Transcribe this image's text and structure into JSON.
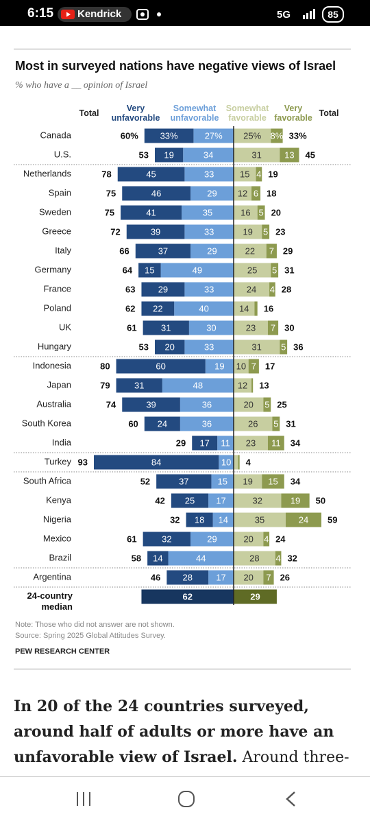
{
  "status_bar": {
    "time": "6:15",
    "notification": "Kendrick",
    "network": "5G",
    "battery": "85"
  },
  "chart_data": {
    "type": "diverging-bar",
    "title": "Most in surveyed nations have negative views of Israel",
    "subtitle": "% who have a __ opinion of Israel",
    "categories": [
      "Canada",
      "U.S.",
      "Netherlands",
      "Spain",
      "Sweden",
      "Greece",
      "Italy",
      "Germany",
      "France",
      "Poland",
      "UK",
      "Hungary",
      "Indonesia",
      "Japan",
      "Australia",
      "South Korea",
      "India",
      "Turkey",
      "South Africa",
      "Kenya",
      "Nigeria",
      "Mexico",
      "Brazil",
      "Argentina"
    ],
    "series": [
      {
        "name": "Very unfavorable",
        "color": "#234a80",
        "side": "unfavorable",
        "values": [
          33,
          19,
          45,
          46,
          41,
          39,
          37,
          15,
          29,
          22,
          31,
          20,
          60,
          31,
          39,
          24,
          17,
          84,
          37,
          25,
          18,
          32,
          14,
          28
        ],
        "value_labels": [
          "33%",
          "19",
          "45",
          "46",
          "41",
          "39",
          "37",
          "15",
          "29",
          "22",
          "31",
          "20",
          "60",
          "31",
          "39",
          "24",
          "17",
          "84",
          "37",
          "25",
          "18",
          "32",
          "14",
          "28"
        ]
      },
      {
        "name": "Somewhat unfavorable",
        "color": "#6c9fd9",
        "side": "unfavorable",
        "values": [
          27,
          34,
          33,
          29,
          35,
          33,
          29,
          49,
          33,
          40,
          30,
          33,
          19,
          48,
          36,
          36,
          11,
          10,
          15,
          17,
          14,
          29,
          44,
          17
        ],
        "value_labels": [
          "27%",
          "34",
          "33",
          "29",
          "35",
          "33",
          "29",
          "49",
          "33",
          "40",
          "30",
          "33",
          "19",
          "48",
          "36",
          "36",
          "11",
          "10",
          "15",
          "17",
          "14",
          "29",
          "44",
          "17"
        ]
      },
      {
        "name": "Somewhat favorable",
        "color": "#c7cea0",
        "side": "favorable",
        "values": [
          25,
          31,
          15,
          12,
          16,
          19,
          22,
          25,
          24,
          14,
          23,
          31,
          10,
          12,
          20,
          26,
          23,
          3,
          19,
          32,
          35,
          20,
          28,
          20
        ],
        "value_labels": [
          "25%",
          "31",
          "15",
          "12",
          "16",
          "19",
          "22",
          "25",
          "24",
          "14",
          "23",
          "31",
          "10",
          "12",
          "20",
          "26",
          "23",
          null,
          "19",
          "32",
          "35",
          "20",
          "28",
          "20"
        ]
      },
      {
        "name": "Very favorable",
        "color": "#8d9a4f",
        "side": "favorable",
        "values": [
          8,
          13,
          4,
          6,
          5,
          5,
          7,
          5,
          4,
          2,
          7,
          5,
          7,
          1,
          5,
          5,
          11,
          1,
          15,
          19,
          24,
          4,
          4,
          7
        ],
        "value_labels": [
          "8%",
          "13",
          "4",
          "6",
          "5",
          "5",
          "7",
          "5",
          "4",
          null,
          "7",
          "5",
          "7",
          null,
          "5",
          "5",
          "11",
          null,
          "15",
          "19",
          "24",
          "4",
          "4",
          "7"
        ]
      }
    ],
    "totals": [
      {
        "name": "Total",
        "side": "unfavorable",
        "values": [
          60,
          53,
          78,
          75,
          75,
          72,
          66,
          64,
          63,
          62,
          61,
          53,
          80,
          79,
          74,
          60,
          29,
          93,
          52,
          42,
          32,
          61,
          58,
          46
        ],
        "value_labels": [
          "60%",
          "53",
          "78",
          "75",
          "75",
          "72",
          "66",
          "64",
          "63",
          "62",
          "61",
          "53",
          "80",
          "79",
          "74",
          "60",
          "29",
          "93",
          "52",
          "42",
          "32",
          "61",
          "58",
          "46"
        ]
      },
      {
        "name": "Total",
        "side": "favorable",
        "values": [
          33,
          45,
          19,
          18,
          20,
          23,
          29,
          31,
          28,
          16,
          30,
          36,
          17,
          13,
          25,
          31,
          34,
          4,
          34,
          50,
          59,
          24,
          32,
          26
        ],
        "value_labels": [
          "33%",
          "45",
          "19",
          "18",
          "20",
          "23",
          "29",
          "31",
          "28",
          "16",
          "30",
          "36",
          "17",
          "13",
          "25",
          "31",
          "34",
          "4",
          "34",
          "50",
          "59",
          "24",
          "32",
          "26"
        ]
      }
    ],
    "median": {
      "label": "24-country median",
      "unfavorable": 62,
      "favorable": 29,
      "unfavorable_color": "#17365f",
      "favorable_color": "#5f6b25"
    },
    "note": "Note: Those who did not answer are not shown.",
    "source": "Source: Spring 2025 Global Attitudes Survey.",
    "credit": "PEW RESEARCH CENTER"
  },
  "article": {
    "lead": "In 20 of the 24 countries surveyed, around half of adults or more have an unfavorable view of Israel.",
    "text": " Around three-quarters or"
  }
}
